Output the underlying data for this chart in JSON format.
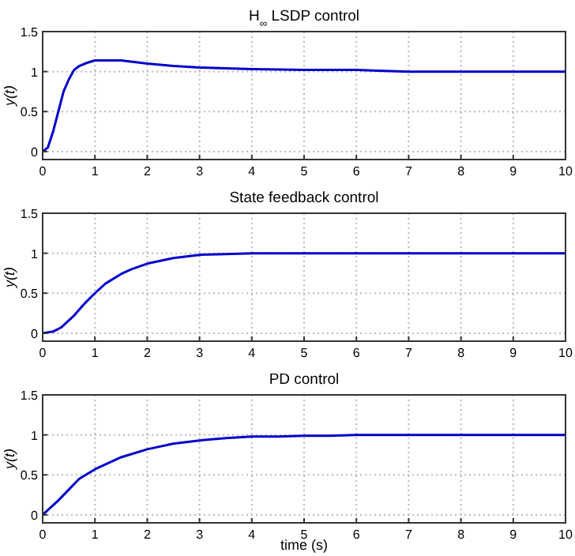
{
  "chart_data": [
    {
      "type": "line",
      "title": "H$_{∞}$ LSDP control",
      "ylabel": "y(t)",
      "xlim": [
        0,
        10
      ],
      "ylim": [
        -0.1,
        1.5
      ],
      "xticks": [
        0,
        1,
        2,
        3,
        4,
        5,
        6,
        7,
        8,
        9,
        10
      ],
      "yticks": [
        0,
        0.5,
        1,
        1.5
      ],
      "grid": true,
      "line_style": "solid",
      "series": [
        {
          "color": "#0000cc",
          "x": [
            0,
            0.1,
            0.2,
            0.3,
            0.4,
            0.5,
            0.6,
            0.7,
            0.85,
            1,
            1.5,
            2,
            2.5,
            3,
            3.5,
            4,
            5,
            6,
            6.4,
            7,
            10
          ],
          "values": [
            0,
            0.05,
            0.25,
            0.5,
            0.75,
            0.9,
            1.02,
            1.07,
            1.11,
            1.14,
            1.14,
            1.1,
            1.07,
            1.05,
            1.04,
            1.03,
            1.02,
            1.02,
            1.01,
            1,
            1
          ]
        }
      ]
    },
    {
      "type": "line",
      "title": "State feedback control",
      "ylabel": "y(t)",
      "xlim": [
        0,
        10
      ],
      "ylim": [
        -0.1,
        1.5
      ],
      "xticks": [
        0,
        1,
        2,
        3,
        4,
        5,
        6,
        7,
        8,
        9,
        10
      ],
      "yticks": [
        0,
        0.5,
        1,
        1.5
      ],
      "grid": true,
      "line_style": "solid",
      "series": [
        {
          "color": "#0000cc",
          "x": [
            0,
            0.2,
            0.35,
            0.6,
            0.8,
            1,
            1.2,
            1.5,
            1.7,
            2,
            2.5,
            3,
            3.5,
            4,
            10
          ],
          "values": [
            0,
            0.02,
            0.07,
            0.22,
            0.37,
            0.5,
            0.62,
            0.74,
            0.8,
            0.87,
            0.94,
            0.98,
            0.99,
            1,
            1
          ]
        }
      ]
    },
    {
      "type": "line",
      "title": "PD control",
      "xlabel": "time (s)",
      "ylabel": "y(t)",
      "xlim": [
        0,
        10
      ],
      "ylim": [
        -0.1,
        1.5
      ],
      "xticks": [
        0,
        1,
        2,
        3,
        4,
        5,
        6,
        7,
        8,
        9,
        10
      ],
      "yticks": [
        0,
        0.5,
        1,
        1.5
      ],
      "grid": true,
      "line_style": "solid",
      "series": [
        {
          "color": "#0000cc",
          "x": [
            0,
            0.3,
            0.7,
            1,
            1.5,
            2,
            2.5,
            3,
            3.5,
            4,
            4.5,
            5,
            5.5,
            6,
            10
          ],
          "values": [
            0,
            0.18,
            0.45,
            0.57,
            0.72,
            0.82,
            0.89,
            0.93,
            0.96,
            0.98,
            0.98,
            0.99,
            0.99,
            1,
            1
          ]
        }
      ]
    }
  ]
}
